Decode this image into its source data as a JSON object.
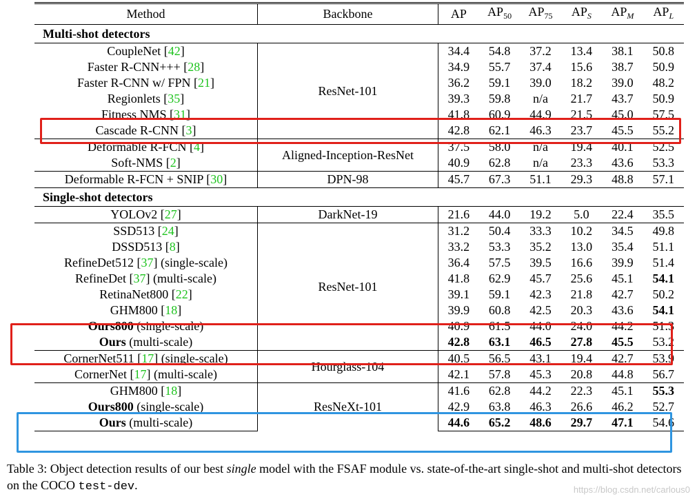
{
  "header": {
    "method": "Method",
    "backbone": "Backbone",
    "ap": "AP",
    "ap50": {
      "base": "AP",
      "sub": "50"
    },
    "ap75": {
      "base": "AP",
      "sub": "75"
    },
    "aps": {
      "base": "AP",
      "sub": "S"
    },
    "apm": {
      "base": "AP",
      "sub": "M"
    },
    "apl": {
      "base": "AP",
      "sub": "L"
    }
  },
  "sections": {
    "multi": "Multi-shot detectors",
    "single": "Single-shot detectors"
  },
  "backbones": {
    "resnet101_a": "ResNet-101",
    "aligned": "Aligned-Inception-ResNet",
    "dpn": "DPN-98",
    "darknet": "DarkNet-19",
    "resnet101_b": "ResNet-101",
    "hourglass": "Hourglass-104",
    "resnext": "ResNeXt-101"
  },
  "rows": [
    {
      "name": "CoupleNet",
      "ref": "42",
      "suffix": "",
      "vals": [
        "34.4",
        "54.8",
        "37.2",
        "13.4",
        "38.1",
        "50.8"
      ]
    },
    {
      "name": "Faster R-CNN+++",
      "ref": "28",
      "suffix": "",
      "vals": [
        "34.9",
        "55.7",
        "37.4",
        "15.6",
        "38.7",
        "50.9"
      ]
    },
    {
      "name": "Faster R-CNN w/ FPN",
      "ref": "21",
      "suffix": "",
      "vals": [
        "36.2",
        "59.1",
        "39.0",
        "18.2",
        "39.0",
        "48.2"
      ]
    },
    {
      "name": "Regionlets",
      "ref": "35",
      "suffix": "",
      "vals": [
        "39.3",
        "59.8",
        "n/a",
        "21.7",
        "43.7",
        "50.9"
      ]
    },
    {
      "name": "Fitness NMS",
      "ref": "31",
      "suffix": "",
      "vals": [
        "41.8",
        "60.9",
        "44.9",
        "21.5",
        "45.0",
        "57.5"
      ]
    },
    {
      "name": "Cascade R-CNN",
      "ref": "3",
      "suffix": "",
      "vals": [
        "42.8",
        "62.1",
        "46.3",
        "23.7",
        "45.5",
        "55.2"
      ]
    },
    {
      "name": "Deformable R-FCN",
      "ref": "4",
      "suffix": "",
      "vals": [
        "37.5",
        "58.0",
        "n/a",
        "19.4",
        "40.1",
        "52.5"
      ]
    },
    {
      "name": "Soft-NMS",
      "ref": "2",
      "suffix": "",
      "vals": [
        "40.9",
        "62.8",
        "n/a",
        "23.3",
        "43.6",
        "53.3"
      ]
    },
    {
      "name": "Deformable R-FCN + SNIP",
      "ref": "30",
      "suffix": "",
      "vals": [
        "45.7",
        "67.3",
        "51.1",
        "29.3",
        "48.8",
        "57.1"
      ]
    },
    {
      "name": "YOLOv2",
      "ref": "27",
      "suffix": "",
      "vals": [
        "21.6",
        "44.0",
        "19.2",
        "5.0",
        "22.4",
        "35.5"
      ]
    },
    {
      "name": "SSD513",
      "ref": "24",
      "suffix": "",
      "vals": [
        "31.2",
        "50.4",
        "33.3",
        "10.2",
        "34.5",
        "49.8"
      ]
    },
    {
      "name": "DSSD513",
      "ref": "8",
      "suffix": "",
      "vals": [
        "33.2",
        "53.3",
        "35.2",
        "13.0",
        "35.4",
        "51.1"
      ]
    },
    {
      "name": "RefineDet512",
      "ref": "37",
      "suffix": "(single-scale)",
      "vals": [
        "36.4",
        "57.5",
        "39.5",
        "16.6",
        "39.9",
        "51.4"
      ]
    },
    {
      "name": "RefineDet",
      "ref": "37",
      "suffix": "(multi-scale)",
      "vals": [
        "41.8",
        "62.9",
        "45.7",
        "25.6",
        "45.1",
        "54.1"
      ]
    },
    {
      "name": "RetinaNet800",
      "ref": "22",
      "suffix": "",
      "vals": [
        "39.1",
        "59.1",
        "42.3",
        "21.8",
        "42.7",
        "50.2"
      ]
    },
    {
      "name": "GHM800",
      "ref": "18",
      "suffix": "",
      "vals": [
        "39.9",
        "60.8",
        "42.5",
        "20.3",
        "43.6",
        "54.1"
      ]
    },
    {
      "name": "Ours800",
      "ref": "",
      "suffix": "(single-scale)",
      "vals": [
        "40.9",
        "61.5",
        "44.0",
        "24.0",
        "44.2",
        "51.3"
      ]
    },
    {
      "name": "Ours",
      "ref": "",
      "suffix": "(multi-scale)",
      "vals": [
        "42.8",
        "63.1",
        "46.5",
        "27.8",
        "45.5",
        "53.2"
      ]
    },
    {
      "name": "CornerNet511",
      "ref": "17",
      "suffix": "(single-scale)",
      "vals": [
        "40.5",
        "56.5",
        "43.1",
        "19.4",
        "42.7",
        "53.9"
      ]
    },
    {
      "name": "CornerNet",
      "ref": "17",
      "suffix": "(multi-scale)",
      "vals": [
        "42.1",
        "57.8",
        "45.3",
        "20.8",
        "44.8",
        "56.7"
      ]
    },
    {
      "name": "GHM800",
      "ref": "18",
      "suffix": "",
      "vals": [
        "41.6",
        "62.8",
        "44.2",
        "22.3",
        "45.1",
        "55.3"
      ]
    },
    {
      "name": "Ours800",
      "ref": "",
      "suffix": "(single-scale)",
      "vals": [
        "42.9",
        "63.8",
        "46.3",
        "26.6",
        "46.2",
        "52.7"
      ]
    },
    {
      "name": "Ours",
      "ref": "",
      "suffix": "(multi-scale)",
      "vals": [
        "44.6",
        "65.2",
        "48.6",
        "29.7",
        "47.1",
        "54.6"
      ]
    }
  ],
  "caption": {
    "p1": "Table 3: Object detection results of our best ",
    "em": "single",
    "p2": " model with the FSAF module vs. state-of-the-art single-shot and multi-shot detectors on the COCO ",
    "mono": "test-dev",
    "p3": "."
  },
  "watermark": "https://blog.csdn.net/carlous0"
}
